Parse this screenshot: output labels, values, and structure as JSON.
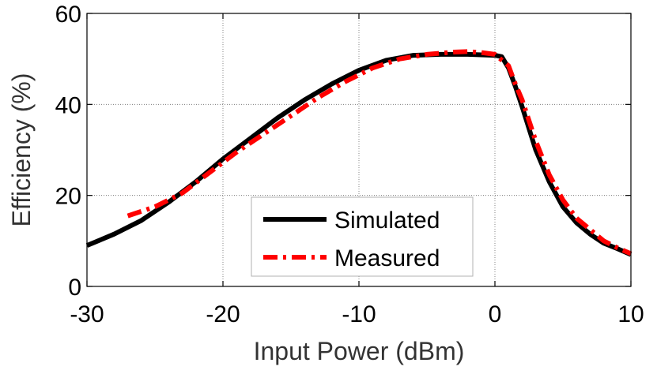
{
  "chart_data": {
    "type": "line",
    "xlabel": "Input Power (dBm)",
    "ylabel": "Efficiency (%)",
    "xlim": [
      -30,
      10
    ],
    "ylim": [
      0,
      60
    ],
    "xticks": [
      -30,
      -20,
      -10,
      0,
      10
    ],
    "yticks": [
      0,
      20,
      40,
      60
    ],
    "xtick_labels": [
      "-30",
      "-20",
      "-10",
      "0",
      "10"
    ],
    "ytick_labels": [
      "0",
      "20",
      "40",
      "60"
    ],
    "grid": true,
    "legend_position": "bottom-center",
    "series": [
      {
        "name": "Simulated",
        "color": "#000000",
        "style": "solid",
        "x": [
          -30,
          -28,
          -26,
          -24,
          -22,
          -20,
          -18,
          -16,
          -14,
          -12,
          -10,
          -8,
          -6,
          -4,
          -2,
          0,
          0.5,
          1,
          1.5,
          2,
          3,
          4,
          5,
          6,
          7,
          8,
          9,
          10
        ],
        "y": [
          9,
          11.5,
          14.5,
          18.5,
          23,
          28,
          32.5,
          37,
          41,
          44.5,
          47.5,
          49.7,
          50.8,
          51,
          51,
          50.8,
          50.5,
          48,
          44,
          39.5,
          30,
          23,
          17.5,
          14,
          11.5,
          9.5,
          8.3,
          7
        ]
      },
      {
        "name": "Measured",
        "color": "#ff0000",
        "style": "dash-dot",
        "x": [
          -27,
          -25,
          -23,
          -21,
          -19,
          -17,
          -15,
          -13,
          -11,
          -9,
          -7,
          -5,
          -3,
          -2,
          -1,
          0,
          1,
          1.5,
          2,
          3,
          4,
          5,
          6,
          7,
          8,
          9,
          10
        ],
        "y": [
          15.5,
          17.5,
          20.5,
          25,
          29.5,
          33.5,
          37.5,
          41.5,
          45,
          48,
          50,
          51,
          51.5,
          51.6,
          51.4,
          51,
          48.5,
          44.5,
          41,
          32,
          24.5,
          19,
          15,
          12.5,
          10,
          8.5,
          7.2
        ]
      }
    ]
  }
}
